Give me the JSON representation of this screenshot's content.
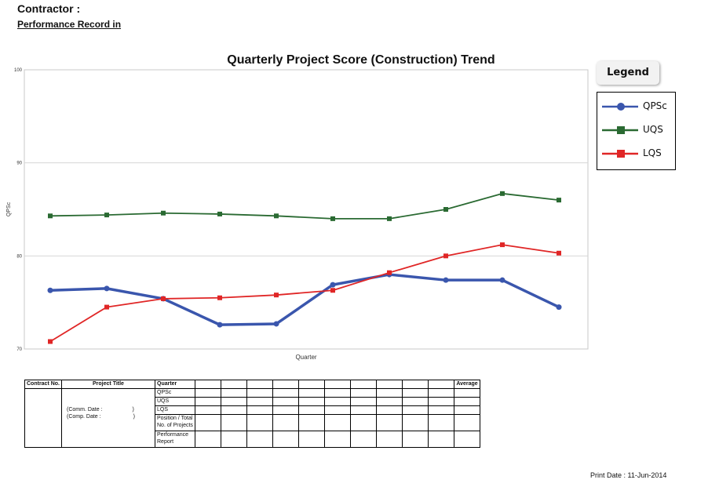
{
  "header": {
    "contractor_label": "Contractor :",
    "performance_label": "Performance Record in"
  },
  "chart_data": {
    "type": "line",
    "title": "Quarterly Project Score (Construction) Trend",
    "xlabel": "Quarter",
    "ylabel": "QPSc",
    "ylim": [
      70,
      100
    ],
    "yticks": [
      70,
      80,
      90,
      100
    ],
    "grid": true,
    "legend_title": "Legend",
    "legend_position": "right",
    "x": [
      1,
      2,
      3,
      4,
      5,
      6,
      7,
      8,
      9,
      10
    ],
    "series": [
      {
        "name": "QPSc",
        "color": "#3a56ad",
        "marker": "circle",
        "values": [
          76.3,
          76.5,
          75.4,
          72.6,
          72.7,
          76.9,
          78.0,
          77.4,
          77.4,
          74.5
        ]
      },
      {
        "name": "UQS",
        "color": "#2a6a32",
        "marker": "square",
        "values": [
          84.3,
          84.4,
          84.6,
          84.5,
          84.3,
          84.0,
          84.0,
          85.0,
          86.7,
          86.0
        ]
      },
      {
        "name": "LQS",
        "color": "#e02626",
        "marker": "square",
        "values": [
          70.8,
          74.5,
          75.4,
          75.5,
          75.8,
          76.3,
          78.2,
          80.0,
          81.2,
          80.3
        ]
      }
    ]
  },
  "table": {
    "contract_no": "Contract No.",
    "project_title": "Project Title",
    "quarter": "Quarter",
    "average": "Average",
    "rows": [
      "QPSc",
      "UQS",
      "LQS",
      "Position / Total No. of Projects",
      "Performance Report"
    ],
    "comm_date": "(Comm. Date :",
    "comp_date": "(Comp. Date :",
    "date_close": ")"
  },
  "footer": {
    "print_date": "Print Date : 11-Jun-2014"
  }
}
